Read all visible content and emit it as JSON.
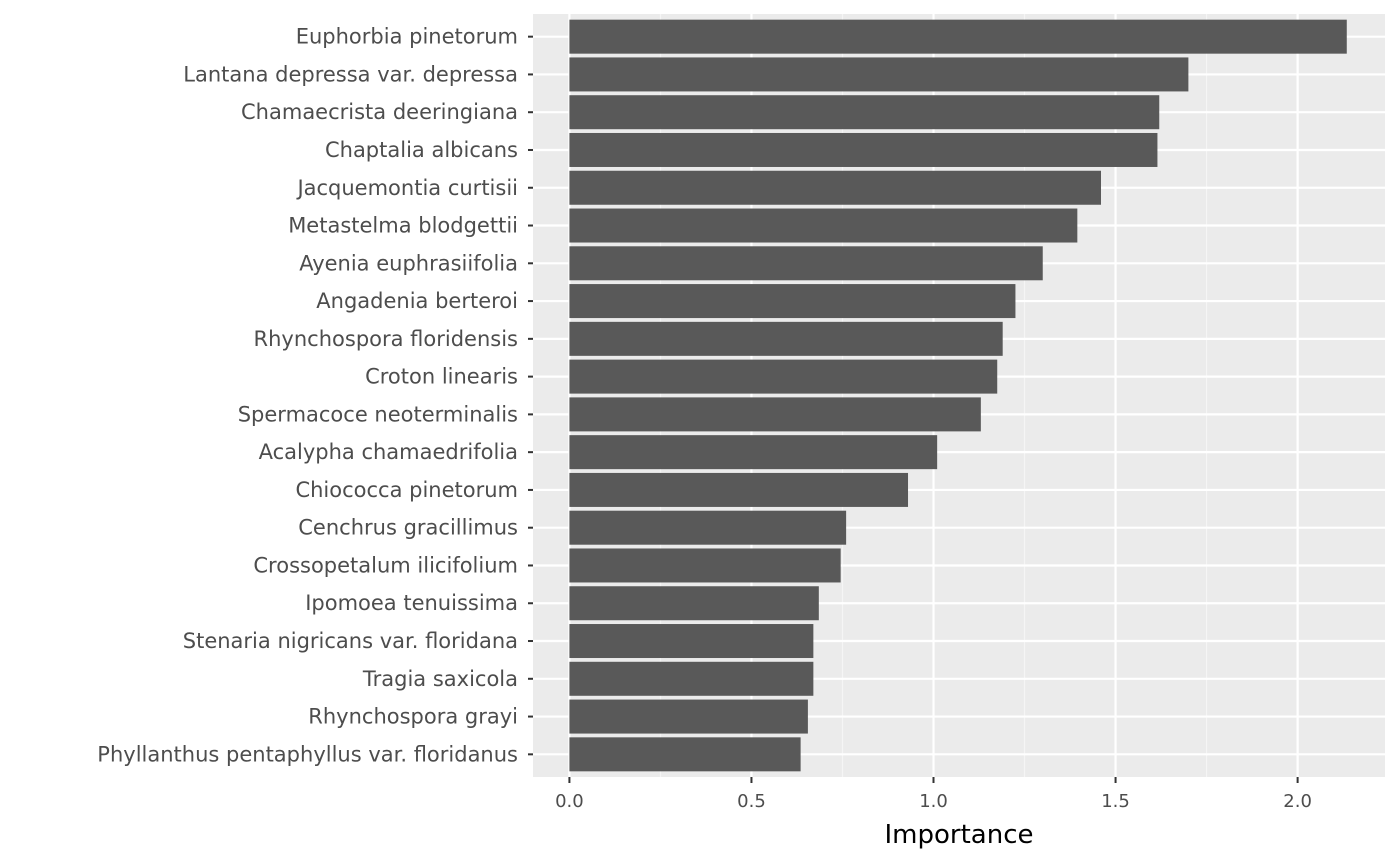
{
  "chart_data": {
    "type": "bar",
    "orientation": "horizontal",
    "xlabel": "Importance",
    "ylabel": "",
    "title": "",
    "xlim": [
      -0.1,
      2.24
    ],
    "xticks": [
      0.0,
      0.5,
      1.0,
      1.5,
      2.0
    ],
    "xtick_labels": [
      "0.0",
      "0.5",
      "1.0",
      "1.5",
      "2.0"
    ],
    "grid": true,
    "legend": "none",
    "categories": [
      "Euphorbia pinetorum",
      "Lantana depressa var. depressa",
      "Chamaecrista deeringiana",
      "Chaptalia albicans",
      "Jacquemontia curtisii",
      "Metastelma blodgettii",
      "Ayenia euphrasiifolia",
      "Angadenia berteroi",
      "Rhynchospora floridensis",
      "Croton linearis",
      "Spermacoce neoterminalis",
      "Acalypha chamaedrifolia",
      "Chiococca pinetorum",
      "Cenchrus gracillimus",
      "Crossopetalum ilicifolium",
      "Ipomoea tenuissima",
      "Stenaria nigricans var. floridana",
      "Tragia saxicola",
      "Rhynchospora grayi",
      "Phyllanthus pentaphyllus var. floridanus"
    ],
    "values": [
      2.135,
      1.7,
      1.62,
      1.615,
      1.46,
      1.395,
      1.3,
      1.225,
      1.19,
      1.175,
      1.13,
      1.01,
      0.93,
      0.76,
      0.745,
      0.685,
      0.67,
      0.67,
      0.655,
      0.635
    ],
    "colors": {
      "bar": "#595959",
      "panel_bg": "#ebebeb",
      "grid_major": "#ffffff",
      "grid_minor": "#f5f5f5",
      "tick": "#333333"
    }
  }
}
